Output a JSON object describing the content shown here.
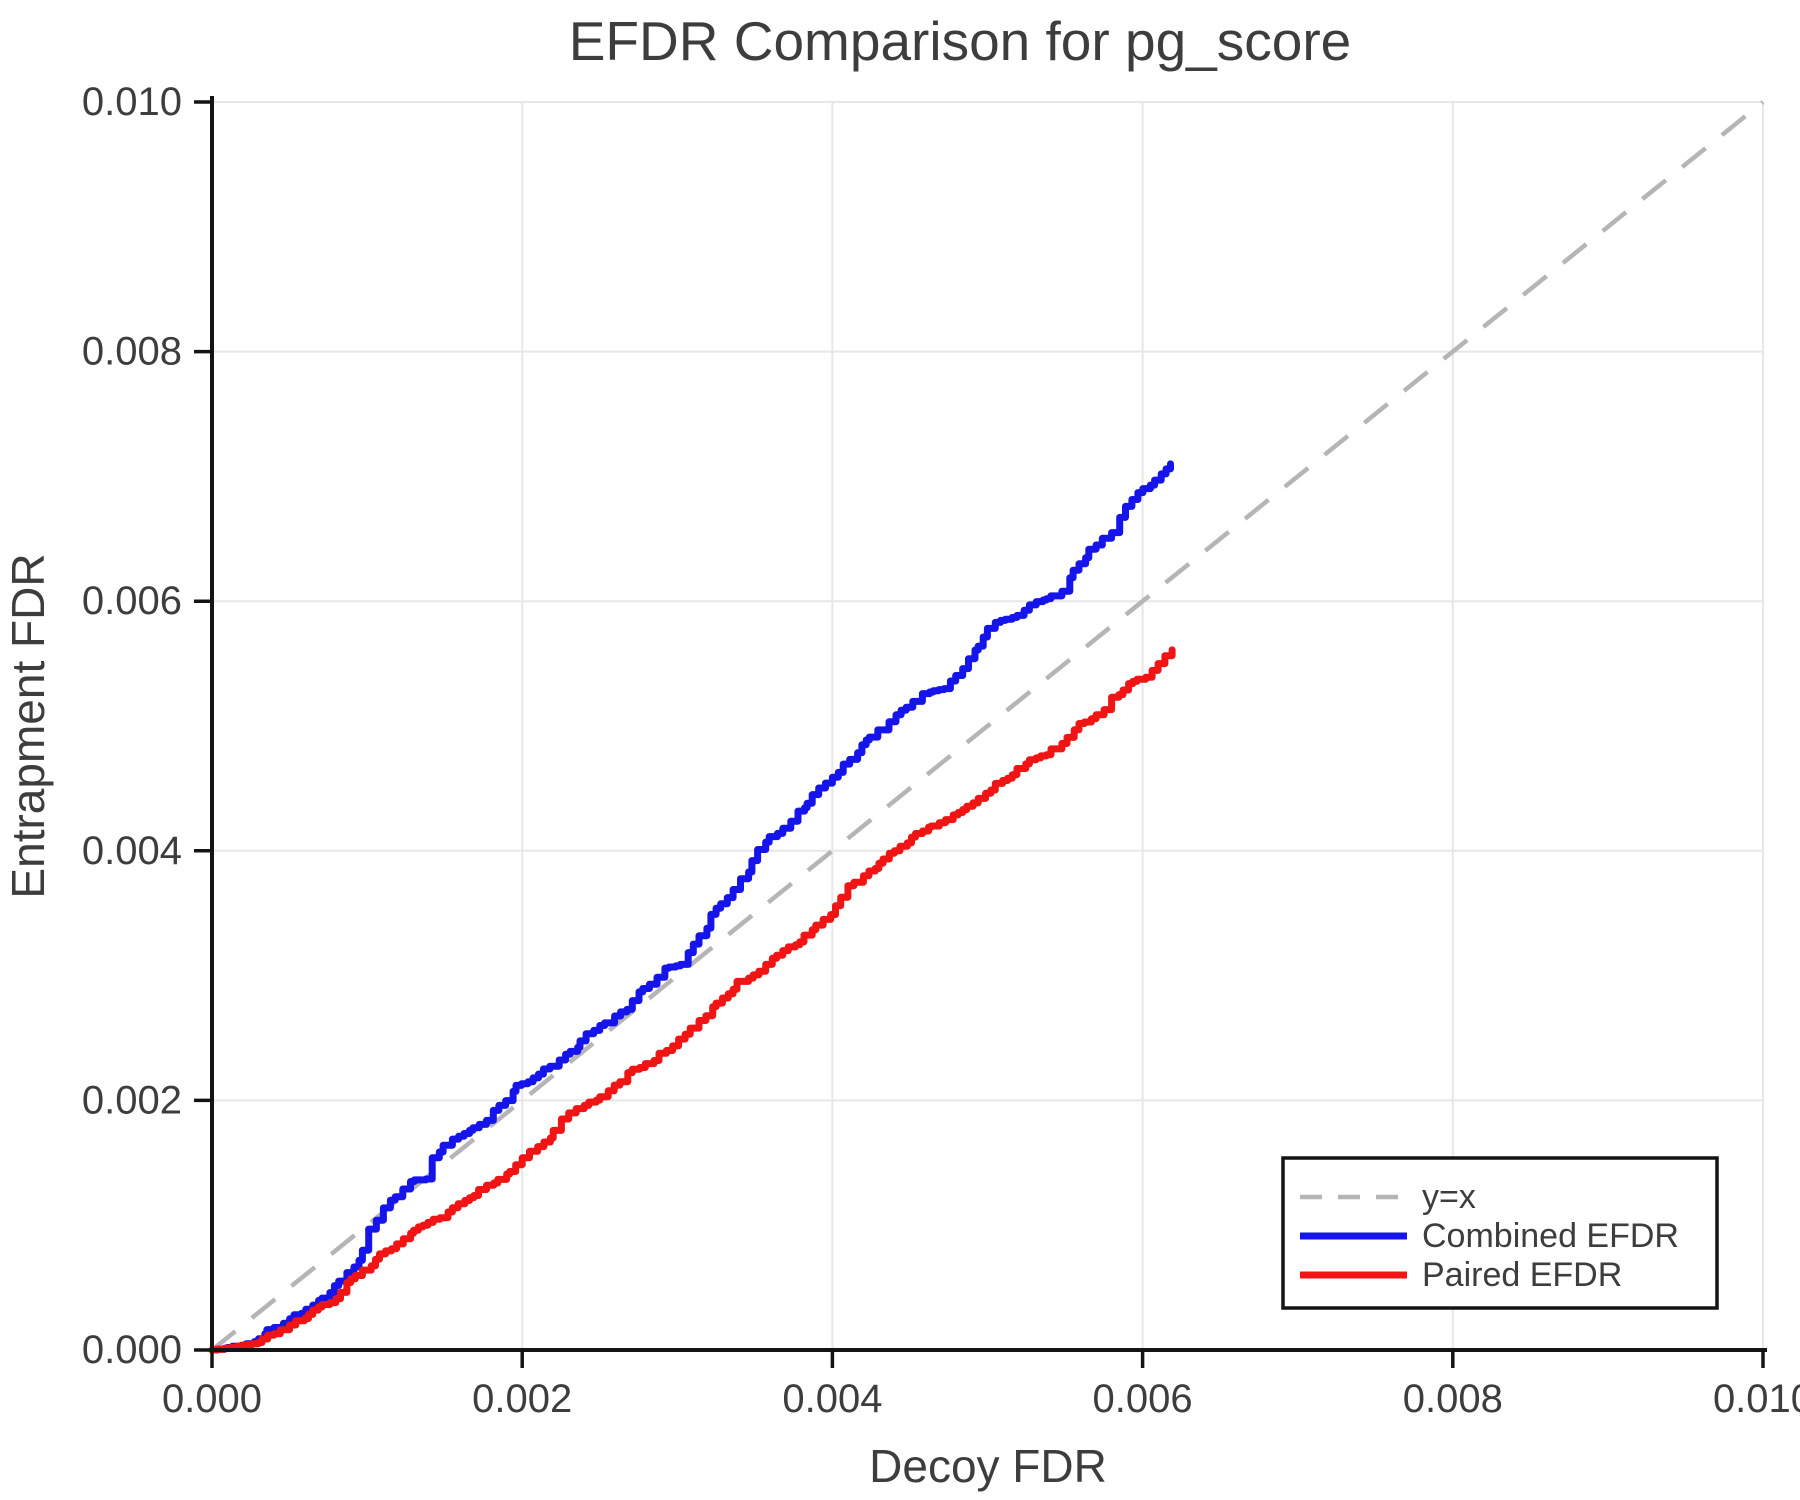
{
  "chart_data": {
    "type": "line",
    "title": "EFDR Comparison for pg_score",
    "xlabel": "Decoy FDR",
    "ylabel": "Entrapment FDR",
    "xlim": [
      0,
      0.01
    ],
    "ylim": [
      0,
      0.01
    ],
    "grid": true,
    "legend_position": "lower right",
    "xticks": {
      "values": [
        0,
        0.002,
        0.004,
        0.006,
        0.008,
        0.01
      ],
      "labels": [
        "0.000",
        "0.002",
        "0.004",
        "0.006",
        "0.008",
        "0.010"
      ]
    },
    "yticks": {
      "values": [
        0,
        0.002,
        0.004,
        0.006,
        0.008,
        0.01
      ],
      "labels": [
        "0.000",
        "0.002",
        "0.004",
        "0.006",
        "0.008",
        "0.010"
      ]
    },
    "series": [
      {
        "name": "y=x",
        "role": "reference",
        "style": "dashed",
        "color": "#b5b5b5",
        "points": [
          [
            0,
            0
          ],
          [
            0.01,
            0.01
          ]
        ]
      },
      {
        "name": "Combined EFDR",
        "role": "data",
        "style": "staircase",
        "color": "#1414eb",
        "points": [
          [
            0,
            0
          ],
          [
            0.0001,
            2e-05
          ],
          [
            0.00022,
            5e-05
          ],
          [
            0.0003,
            9e-05
          ],
          [
            0.0004,
            0.00018
          ],
          [
            0.0005,
            0.00025
          ],
          [
            0.00065,
            0.00036
          ],
          [
            0.00076,
            0.00046
          ],
          [
            0.00087,
            0.00062
          ],
          [
            0.00097,
            0.0008
          ],
          [
            0.00106,
            0.00104
          ],
          [
            0.00115,
            0.0012
          ],
          [
            0.00123,
            0.00129
          ],
          [
            0.00128,
            0.00135
          ],
          [
            0.00138,
            0.00137
          ],
          [
            0.00142,
            0.00154
          ],
          [
            0.00149,
            0.00164
          ],
          [
            0.00155,
            0.00169
          ],
          [
            0.00166,
            0.00176
          ],
          [
            0.00177,
            0.00184
          ],
          [
            0.00185,
            0.00196
          ],
          [
            0.00196,
            0.00212
          ],
          [
            0.00207,
            0.00218
          ],
          [
            0.00228,
            0.00237
          ],
          [
            0.0025,
            0.0026
          ],
          [
            0.00271,
            0.0028
          ],
          [
            0.00282,
            0.00293
          ],
          [
            0.00292,
            0.00306
          ],
          [
            0.00302,
            0.00309
          ],
          [
            0.00314,
            0.00332
          ],
          [
            0.00325,
            0.00354
          ],
          [
            0.00336,
            0.00369
          ],
          [
            0.00346,
            0.00383
          ],
          [
            0.00357,
            0.00407
          ],
          [
            0.00368,
            0.00418
          ],
          [
            0.00387,
            0.00445
          ],
          [
            0.004,
            0.00459
          ],
          [
            0.00419,
            0.00485
          ],
          [
            0.00441,
            0.00509
          ],
          [
            0.00458,
            0.00526
          ],
          [
            0.00472,
            0.0053
          ],
          [
            0.00484,
            0.00546
          ],
          [
            0.00494,
            0.00564
          ],
          [
            0.00505,
            0.00583
          ],
          [
            0.00516,
            0.00587
          ],
          [
            0.00527,
            0.00597
          ],
          [
            0.00538,
            0.00602
          ],
          [
            0.00548,
            0.00608
          ],
          [
            0.00559,
            0.0063
          ],
          [
            0.0057,
            0.00645
          ],
          [
            0.0058,
            0.00655
          ],
          [
            0.00589,
            0.00676
          ],
          [
            0.00597,
            0.00687
          ],
          [
            0.00605,
            0.00693
          ],
          [
            0.00612,
            0.00702
          ],
          [
            0.00618,
            0.0071
          ]
        ]
      },
      {
        "name": "Paired EFDR",
        "role": "data",
        "style": "staircase",
        "color": "#f01414",
        "points": [
          [
            0,
            0
          ],
          [
            0.00012,
            2e-05
          ],
          [
            0.0003,
            6e-05
          ],
          [
            0.0004,
            0.00013
          ],
          [
            0.0005,
            0.0002
          ],
          [
            0.00065,
            0.00032
          ],
          [
            0.00076,
            0.00038
          ],
          [
            0.00087,
            0.00054
          ],
          [
            0.00097,
            0.00064
          ],
          [
            0.00108,
            0.00077
          ],
          [
            0.00119,
            0.00085
          ],
          [
            0.0013,
            0.00096
          ],
          [
            0.00136,
            0.001
          ],
          [
            0.00147,
            0.00106
          ],
          [
            0.00155,
            0.00114
          ],
          [
            0.00166,
            0.00122
          ],
          [
            0.00177,
            0.00132
          ],
          [
            0.0019,
            0.00141
          ],
          [
            0.002,
            0.00154
          ],
          [
            0.0021,
            0.00163
          ],
          [
            0.0022,
            0.00176
          ],
          [
            0.0023,
            0.0019
          ],
          [
            0.0024,
            0.00196
          ],
          [
            0.0025,
            0.00203
          ],
          [
            0.00263,
            0.00215
          ],
          [
            0.00271,
            0.00225
          ],
          [
            0.00285,
            0.00232
          ],
          [
            0.00293,
            0.0024
          ],
          [
            0.00305,
            0.00253
          ],
          [
            0.00314,
            0.00264
          ],
          [
            0.00325,
            0.00278
          ],
          [
            0.00336,
            0.00289
          ],
          [
            0.00346,
            0.00298
          ],
          [
            0.00357,
            0.00309
          ],
          [
            0.00368,
            0.0032
          ],
          [
            0.00379,
            0.00327
          ],
          [
            0.00394,
            0.00345
          ],
          [
            0.00402,
            0.00356
          ],
          [
            0.0041,
            0.00372
          ],
          [
            0.0042,
            0.0038
          ],
          [
            0.0043,
            0.0039
          ],
          [
            0.0044,
            0.004
          ],
          [
            0.00451,
            0.00411
          ],
          [
            0.00462,
            0.00419
          ],
          [
            0.00473,
            0.00425
          ],
          [
            0.00484,
            0.00433
          ],
          [
            0.00494,
            0.00442
          ],
          [
            0.00505,
            0.00454
          ],
          [
            0.00516,
            0.00461
          ],
          [
            0.00527,
            0.00473
          ],
          [
            0.00538,
            0.00477
          ],
          [
            0.00548,
            0.00486
          ],
          [
            0.00559,
            0.00502
          ],
          [
            0.0057,
            0.00509
          ],
          [
            0.0058,
            0.00523
          ],
          [
            0.00591,
            0.00534
          ],
          [
            0.00602,
            0.00539
          ],
          [
            0.0061,
            0.0055
          ],
          [
            0.00619,
            0.00561
          ]
        ]
      }
    ]
  },
  "colors": {
    "text": "#3d3d3d",
    "axis": "#141414",
    "grid": "#e7e7e7",
    "background": "#ffffff"
  }
}
